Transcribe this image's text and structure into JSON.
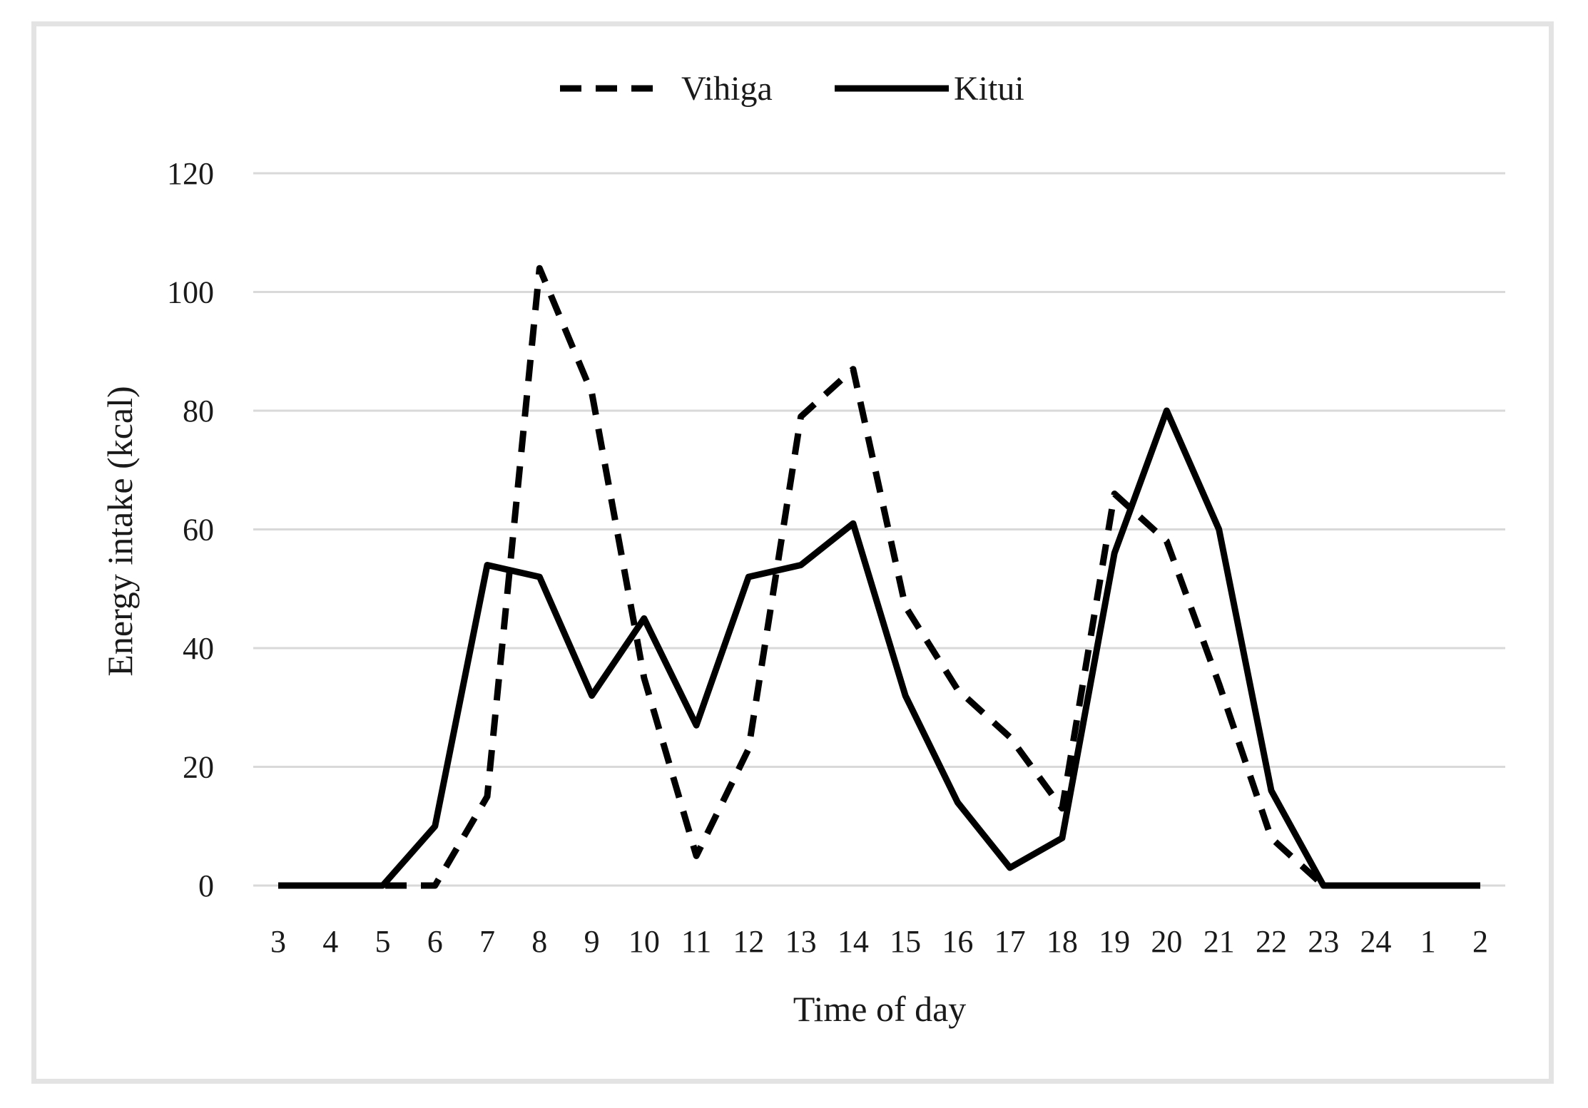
{
  "chart_data": {
    "type": "line",
    "xlabel": "Time of day",
    "ylabel": "Energy intake (kcal)",
    "ylim": [
      0,
      120
    ],
    "yticks": [
      0,
      20,
      40,
      60,
      80,
      100,
      120
    ],
    "grid": true,
    "legend_position": "top-center",
    "categories": [
      "3",
      "4",
      "5",
      "6",
      "7",
      "8",
      "9",
      "10",
      "11",
      "12",
      "13",
      "14",
      "15",
      "16",
      "17",
      "18",
      "19",
      "20",
      "21",
      "22",
      "23",
      "24",
      "1",
      "2"
    ],
    "series": [
      {
        "name": "Vihiga",
        "style": "dashed",
        "color": "#000000",
        "values": [
          0,
          0,
          0,
          0,
          15,
          104,
          83,
          35,
          5,
          23,
          79,
          87,
          47,
          33,
          25,
          13,
          66,
          58,
          34,
          8,
          0,
          0,
          0,
          0
        ]
      },
      {
        "name": "Kitui",
        "style": "solid",
        "color": "#000000",
        "values": [
          0,
          0,
          0,
          10,
          54,
          52,
          32,
          45,
          27,
          52,
          54,
          61,
          32,
          14,
          3,
          8,
          56,
          80,
          60,
          16,
          0,
          0,
          0,
          0
        ]
      }
    ]
  },
  "colors": {
    "grid": "#d9d9d9",
    "frame": "#e3e3e3",
    "line": "#000000",
    "text": "#1a1a1a"
  }
}
